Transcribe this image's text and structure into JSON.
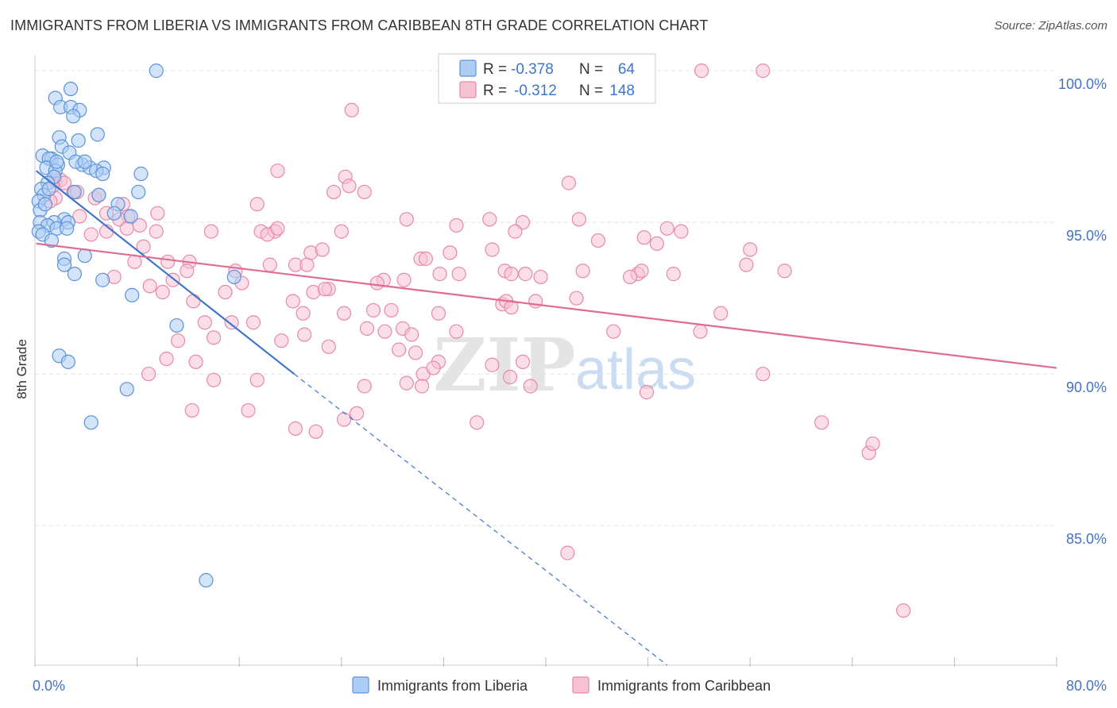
{
  "header": {
    "title": "IMMIGRANTS FROM LIBERIA VS IMMIGRANTS FROM CARIBBEAN 8TH GRADE CORRELATION CHART",
    "source": "Source: ZipAtlas.com"
  },
  "watermark": {
    "zip": "ZIP",
    "atlas": "atlas"
  },
  "colors": {
    "liberia_fill": "#aecdf5",
    "liberia_stroke": "#5b93d8",
    "liberia_line": "#3d75cc",
    "caribbean_fill": "#f7c2d3",
    "caribbean_stroke": "#e68aa8",
    "caribbean_line": "#e06b95",
    "tick_label": "#4472c4",
    "grid": "#e3e3e3"
  },
  "legend_box": {
    "rows": [
      {
        "r_label": "R = ",
        "r_value": "-0.378",
        "n_label": "N = ",
        "n_value": "64"
      },
      {
        "r_label": "R = ",
        "r_value": "-0.312",
        "n_label": "N = ",
        "n_value": "148"
      }
    ]
  },
  "chart_data": {
    "type": "scatter",
    "title": "IMMIGRANTS FROM LIBERIA VS IMMIGRANTS FROM CARIBBEAN 8TH GRADE CORRELATION CHART",
    "xlabel": "",
    "ylabel": "8th Grade",
    "xlim": [
      0,
      80
    ],
    "ylim": [
      80.4,
      100.5
    ],
    "x_tick_labels": [
      {
        "value": 0,
        "label": "0.0%"
      },
      {
        "value": 80,
        "label": "80.0%"
      }
    ],
    "y_tick_labels": [
      {
        "value": 100,
        "label": "100.0%"
      },
      {
        "value": 95,
        "label": "95.0%"
      },
      {
        "value": 90,
        "label": "90.0%"
      },
      {
        "value": 85,
        "label": "85.0%"
      }
    ],
    "grid": true,
    "legend_position": "bottom",
    "series": [
      {
        "name": "Immigrants from Liberia",
        "r": -0.378,
        "n": 64,
        "trend": {
          "solid": [
            [
              0.1,
              96.7
            ],
            [
              20.3,
              90.0
            ]
          ],
          "dashed": [
            [
              20.3,
              90.0
            ],
            [
              49.5,
              80.4
            ]
          ]
        },
        "points": [
          [
            1.6,
            99.1
          ],
          [
            2.8,
            99.4
          ],
          [
            9.5,
            100.0
          ],
          [
            2.0,
            98.8
          ],
          [
            2.8,
            98.8
          ],
          [
            3.5,
            98.7
          ],
          [
            3.0,
            98.5
          ],
          [
            1.9,
            97.8
          ],
          [
            4.9,
            97.9
          ],
          [
            2.1,
            97.5
          ],
          [
            3.4,
            97.7
          ],
          [
            2.7,
            97.3
          ],
          [
            0.6,
            97.2
          ],
          [
            1.3,
            97.1
          ],
          [
            1.1,
            97.1
          ],
          [
            1.8,
            96.9
          ],
          [
            3.7,
            96.9
          ],
          [
            3.2,
            97.0
          ],
          [
            4.3,
            96.8
          ],
          [
            5.4,
            96.8
          ],
          [
            0.9,
            96.8
          ],
          [
            1.6,
            96.7
          ],
          [
            4.8,
            96.7
          ],
          [
            5.3,
            96.6
          ],
          [
            8.3,
            96.6
          ],
          [
            1.5,
            96.5
          ],
          [
            1.0,
            96.3
          ],
          [
            0.5,
            96.1
          ],
          [
            3.1,
            96.0
          ],
          [
            8.1,
            96.0
          ],
          [
            5.0,
            95.9
          ],
          [
            0.7,
            95.9
          ],
          [
            0.3,
            95.7
          ],
          [
            6.5,
            95.6
          ],
          [
            0.4,
            95.4
          ],
          [
            6.2,
            95.3
          ],
          [
            7.5,
            95.2
          ],
          [
            2.3,
            95.1
          ],
          [
            0.4,
            95.0
          ],
          [
            1.5,
            95.0
          ],
          [
            2.6,
            95.0
          ],
          [
            1.0,
            94.9
          ],
          [
            1.7,
            94.8
          ],
          [
            2.5,
            94.8
          ],
          [
            0.3,
            94.7
          ],
          [
            0.6,
            94.6
          ],
          [
            1.3,
            94.4
          ],
          [
            2.3,
            93.8
          ],
          [
            3.9,
            93.9
          ],
          [
            2.3,
            93.6
          ],
          [
            3.1,
            93.3
          ],
          [
            5.3,
            93.1
          ],
          [
            15.6,
            93.2
          ],
          [
            7.6,
            92.6
          ],
          [
            11.1,
            91.6
          ],
          [
            1.9,
            90.6
          ],
          [
            2.6,
            90.4
          ],
          [
            7.2,
            89.5
          ],
          [
            4.4,
            88.4
          ],
          [
            13.4,
            83.2
          ],
          [
            1.1,
            96.1
          ],
          [
            3.9,
            97.0
          ],
          [
            0.8,
            95.6
          ],
          [
            1.7,
            97.0
          ]
        ]
      },
      {
        "name": "Immigrants from Caribbean",
        "r": -0.312,
        "n": 148,
        "trend": {
          "solid": [
            [
              0.1,
              94.3
            ],
            [
              80.0,
              90.2
            ]
          ]
        },
        "points": [
          [
            52.2,
            100.0
          ],
          [
            57.0,
            100.0
          ],
          [
            24.8,
            98.7
          ],
          [
            1.6,
            96.4
          ],
          [
            2.0,
            96.4
          ],
          [
            2.3,
            96.3
          ],
          [
            1.4,
            96.2
          ],
          [
            3.0,
            96.0
          ],
          [
            3.3,
            96.0
          ],
          [
            1.6,
            95.8
          ],
          [
            4.7,
            95.8
          ],
          [
            5.0,
            95.9
          ],
          [
            1.2,
            95.7
          ],
          [
            6.9,
            95.6
          ],
          [
            9.6,
            95.3
          ],
          [
            5.6,
            95.3
          ],
          [
            3.5,
            95.2
          ],
          [
            7.3,
            95.2
          ],
          [
            6.6,
            95.1
          ],
          [
            8.2,
            94.9
          ],
          [
            4.4,
            94.6
          ],
          [
            5.6,
            94.7
          ],
          [
            7.2,
            94.8
          ],
          [
            9.5,
            94.7
          ],
          [
            13.8,
            94.7
          ],
          [
            17.7,
            94.7
          ],
          [
            18.8,
            94.7
          ],
          [
            18.2,
            94.6
          ],
          [
            19.0,
            94.8
          ],
          [
            20.4,
            93.6
          ],
          [
            8.5,
            94.2
          ],
          [
            10.4,
            93.7
          ],
          [
            7.8,
            93.7
          ],
          [
            12.1,
            93.7
          ],
          [
            11.9,
            93.4
          ],
          [
            15.7,
            93.4
          ],
          [
            18.4,
            93.6
          ],
          [
            21.3,
            93.6
          ],
          [
            21.6,
            94.0
          ],
          [
            22.5,
            94.1
          ],
          [
            6.2,
            93.2
          ],
          [
            9.0,
            92.9
          ],
          [
            10.0,
            92.7
          ],
          [
            10.8,
            93.1
          ],
          [
            12.4,
            92.4
          ],
          [
            14.9,
            92.7
          ],
          [
            16.2,
            93.0
          ],
          [
            20.2,
            92.4
          ],
          [
            21.0,
            92.0
          ],
          [
            21.8,
            92.7
          ],
          [
            23.0,
            92.8
          ],
          [
            22.7,
            92.8
          ],
          [
            13.3,
            91.7
          ],
          [
            15.4,
            91.7
          ],
          [
            17.1,
            91.7
          ],
          [
            14.0,
            91.2
          ],
          [
            11.2,
            91.1
          ],
          [
            19.3,
            91.1
          ],
          [
            23.0,
            90.9
          ],
          [
            26.0,
            91.5
          ],
          [
            27.4,
            91.4
          ],
          [
            26.5,
            92.1
          ],
          [
            27.9,
            92.1
          ],
          [
            24.2,
            92.0
          ],
          [
            27.3,
            93.1
          ],
          [
            26.8,
            93.0
          ],
          [
            28.9,
            93.1
          ],
          [
            30.2,
            93.8
          ],
          [
            30.6,
            93.8
          ],
          [
            31.7,
            93.3
          ],
          [
            32.5,
            94.0
          ],
          [
            33.2,
            93.3
          ],
          [
            31.6,
            92.0
          ],
          [
            28.8,
            91.5
          ],
          [
            29.5,
            91.3
          ],
          [
            28.5,
            90.8
          ],
          [
            29.8,
            90.7
          ],
          [
            30.4,
            90.0
          ],
          [
            31.6,
            90.4
          ],
          [
            31.2,
            90.2
          ],
          [
            33.0,
            91.4
          ],
          [
            29.1,
            89.7
          ],
          [
            35.8,
            90.3
          ],
          [
            38.2,
            90.4
          ],
          [
            36.6,
            92.3
          ],
          [
            36.9,
            92.4
          ],
          [
            39.2,
            92.4
          ],
          [
            37.3,
            92.2
          ],
          [
            35.8,
            94.1
          ],
          [
            36.8,
            93.4
          ],
          [
            37.3,
            93.3
          ],
          [
            38.4,
            93.3
          ],
          [
            39.6,
            93.2
          ],
          [
            42.9,
            93.4
          ],
          [
            42.4,
            92.5
          ],
          [
            44.1,
            94.4
          ],
          [
            45.3,
            91.4
          ],
          [
            47.2,
            93.3
          ],
          [
            47.5,
            93.4
          ],
          [
            46.6,
            93.2
          ],
          [
            47.7,
            94.5
          ],
          [
            48.7,
            94.3
          ],
          [
            50.0,
            93.3
          ],
          [
            49.5,
            94.8
          ],
          [
            50.6,
            94.7
          ],
          [
            52.1,
            91.4
          ],
          [
            53.7,
            92.0
          ],
          [
            55.7,
            93.6
          ],
          [
            56.0,
            94.1
          ],
          [
            58.7,
            93.4
          ],
          [
            57.0,
            90.0
          ],
          [
            47.9,
            89.4
          ],
          [
            38.8,
            89.6
          ],
          [
            37.2,
            89.9
          ],
          [
            30.3,
            89.6
          ],
          [
            34.6,
            88.4
          ],
          [
            41.7,
            84.1
          ],
          [
            61.6,
            88.4
          ],
          [
            65.3,
            87.4
          ],
          [
            65.6,
            87.7
          ],
          [
            68.0,
            82.2
          ],
          [
            24.3,
            96.5
          ],
          [
            24.6,
            96.2
          ],
          [
            25.8,
            96.0
          ],
          [
            23.4,
            96.0
          ],
          [
            19.0,
            96.7
          ],
          [
            17.4,
            95.6
          ],
          [
            29.1,
            95.1
          ],
          [
            33.0,
            94.9
          ],
          [
            35.6,
            95.1
          ],
          [
            38.2,
            95.0
          ],
          [
            41.8,
            96.3
          ],
          [
            42.6,
            95.1
          ],
          [
            37.6,
            94.7
          ],
          [
            24.0,
            94.7
          ],
          [
            25.8,
            89.6
          ],
          [
            22.0,
            88.1
          ],
          [
            24.2,
            88.5
          ],
          [
            20.4,
            88.2
          ],
          [
            16.7,
            88.8
          ],
          [
            12.3,
            88.8
          ],
          [
            8.9,
            90.0
          ],
          [
            10.3,
            90.5
          ],
          [
            12.6,
            90.4
          ],
          [
            14.0,
            89.8
          ],
          [
            17.4,
            89.8
          ],
          [
            21.1,
            91.3
          ],
          [
            25.2,
            88.7
          ]
        ]
      }
    ]
  }
}
